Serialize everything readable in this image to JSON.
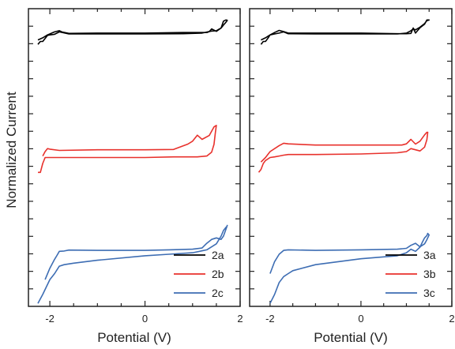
{
  "figure": {
    "ylabel": "Normalized Current"
  },
  "colors": {
    "a": "#000000",
    "b": "#e8312c",
    "c": "#3d6db3",
    "axis": "#222222"
  },
  "chart_data": [
    {
      "type": "line",
      "title": "",
      "xlabel": "Potential (V)",
      "ylabel": "Normalized Current",
      "xlim": [
        -2.45,
        2.0
      ],
      "ylim": [
        0,
        1
      ],
      "xticks": [
        -2,
        0,
        2
      ],
      "xtick_labels": [
        "-2",
        "0",
        "2"
      ],
      "grid": false,
      "yticks_labeled": false,
      "legend": {
        "position": "bottom-right",
        "entries": [
          "2a",
          "2b",
          "2c"
        ]
      },
      "series": [
        {
          "name": "2a",
          "color": "#000000",
          "x": [
            -2.25,
            -2.2,
            -2.15,
            -2.1,
            -2.05,
            -2.0,
            -1.9,
            -1.8,
            -1.6,
            -1.0,
            0.0,
            0.8,
            1.2,
            1.4,
            1.5,
            1.6,
            1.65,
            1.7,
            1.72,
            1.73,
            1.7,
            1.65,
            1.6,
            1.5,
            1.4,
            1.35,
            1.3,
            1.1,
            0.8,
            0.0,
            -1.0,
            -1.6,
            -1.75,
            -1.8,
            -1.9,
            -2.05,
            -2.15,
            -2.25
          ],
          "y": [
            0.88,
            0.89,
            0.89,
            0.9,
            0.91,
            0.912,
            0.914,
            0.922,
            0.915,
            0.915,
            0.915,
            0.916,
            0.918,
            0.925,
            0.926,
            0.935,
            0.945,
            0.954,
            0.958,
            0.961,
            0.962,
            0.958,
            0.935,
            0.924,
            0.932,
            0.923,
            0.92,
            0.92,
            0.92,
            0.918,
            0.918,
            0.917,
            0.922,
            0.926,
            0.922,
            0.912,
            0.902,
            0.895
          ]
        },
        {
          "name": "2b",
          "color": "#e8312c",
          "x": [
            -2.25,
            -2.2,
            -2.15,
            -2.1,
            -2.0,
            -1.8,
            -1.5,
            -1.0,
            0.0,
            0.6,
            0.9,
            1.1,
            1.3,
            1.4,
            1.45,
            1.48,
            1.5,
            1.45,
            1.35,
            1.2,
            1.1,
            1.0,
            0.9,
            0.6,
            0.0,
            -1.0,
            -1.8,
            -2.0,
            -2.05,
            -2.1,
            -2.15
          ],
          "y": [
            0.45,
            0.45,
            0.48,
            0.5,
            0.5,
            0.5,
            0.5,
            0.5,
            0.5,
            0.502,
            0.502,
            0.502,
            0.505,
            0.518,
            0.544,
            0.585,
            0.608,
            0.603,
            0.574,
            0.561,
            0.575,
            0.555,
            0.545,
            0.527,
            0.526,
            0.526,
            0.524,
            0.528,
            0.53,
            0.52,
            0.505
          ]
        },
        {
          "name": "2c",
          "color": "#3d6db3",
          "x": [
            -2.25,
            -2.15,
            -2.0,
            -1.9,
            -1.8,
            -1.7,
            -1.5,
            -1.0,
            0.0,
            0.5,
            1.0,
            1.3,
            1.5,
            1.6,
            1.65,
            1.7,
            1.72,
            1.73,
            1.7,
            1.65,
            1.6,
            1.5,
            1.4,
            1.3,
            1.2,
            1.0,
            0.5,
            0.0,
            -1.0,
            -1.6,
            -1.7,
            -1.8,
            -1.85,
            -1.9,
            -2.0,
            -2.1
          ],
          "y": [
            0.01,
            0.04,
            0.09,
            0.11,
            0.135,
            0.14,
            0.145,
            0.155,
            0.17,
            0.175,
            0.18,
            0.19,
            0.21,
            0.236,
            0.255,
            0.265,
            0.268,
            0.272,
            0.258,
            0.236,
            0.225,
            0.23,
            0.225,
            0.212,
            0.196,
            0.192,
            0.19,
            0.188,
            0.188,
            0.189,
            0.186,
            0.185,
            0.171,
            0.158,
            0.128,
            0.09
          ]
        }
      ]
    },
    {
      "type": "line",
      "title": "",
      "xlabel": "Potential (V)",
      "ylabel": "",
      "xlim": [
        -2.45,
        2.0
      ],
      "ylim": [
        0,
        1
      ],
      "xticks": [
        -2,
        0,
        2
      ],
      "xtick_labels": [
        "-2",
        "0",
        "2"
      ],
      "grid": false,
      "yticks_labeled": false,
      "legend": {
        "position": "bottom-right",
        "entries": [
          "3a",
          "3b",
          "3c"
        ]
      },
      "series": [
        {
          "name": "3a",
          "color": "#000000",
          "x": [
            -2.2,
            -2.15,
            -2.1,
            -2.05,
            -2.0,
            -1.9,
            -1.8,
            -1.7,
            -1.6,
            -1.0,
            0.0,
            0.8,
            1.0,
            1.1,
            1.15,
            1.2,
            1.3,
            1.4,
            1.45,
            1.5,
            1.45,
            1.4,
            1.3,
            1.2,
            1.15,
            1.1,
            1.0,
            0.8,
            0.0,
            -1.0,
            -1.6,
            -1.7,
            -1.8,
            -1.9,
            -2.0,
            -2.1,
            -2.2
          ],
          "y": [
            0.88,
            0.89,
            0.89,
            0.9,
            0.912,
            0.915,
            0.918,
            0.922,
            0.916,
            0.915,
            0.915,
            0.915,
            0.918,
            0.926,
            0.932,
            0.929,
            0.938,
            0.95,
            0.96,
            0.962,
            0.962,
            0.948,
            0.936,
            0.918,
            0.935,
            0.917,
            0.916,
            0.916,
            0.918,
            0.918,
            0.918,
            0.923,
            0.927,
            0.92,
            0.912,
            0.902,
            0.895
          ]
        },
        {
          "name": "3b",
          "color": "#e8312c",
          "x": [
            -2.25,
            -2.2,
            -2.15,
            -2.1,
            -2.0,
            -1.9,
            -1.8,
            -1.7,
            -1.6,
            -1.0,
            0.0,
            0.8,
            1.0,
            1.1,
            1.2,
            1.3,
            1.4,
            1.45,
            1.47,
            1.45,
            1.4,
            1.3,
            1.2,
            1.1,
            1.0,
            0.9,
            0.0,
            -1.0,
            -1.6,
            -1.7,
            -1.8,
            -2.0,
            -2.1,
            -2.2
          ],
          "y": [
            0.45,
            0.46,
            0.48,
            0.49,
            0.5,
            0.502,
            0.505,
            0.508,
            0.51,
            0.51,
            0.512,
            0.516,
            0.52,
            0.53,
            0.526,
            0.522,
            0.535,
            0.56,
            0.585,
            0.585,
            0.576,
            0.555,
            0.545,
            0.561,
            0.546,
            0.542,
            0.542,
            0.542,
            0.546,
            0.548,
            0.54,
            0.52,
            0.5,
            0.485
          ]
        },
        {
          "name": "3c",
          "color": "#3d6db3",
          "x": [
            -2.0,
            -1.9,
            -1.8,
            -1.7,
            -1.6,
            -1.5,
            -1.0,
            0.0,
            0.8,
            1.0,
            1.1,
            1.2,
            1.3,
            1.35,
            1.4,
            1.45,
            1.47,
            1.5,
            1.45,
            1.4,
            1.3,
            1.2,
            1.1,
            1.0,
            0.8,
            0.0,
            -1.0,
            -1.6,
            -1.7,
            -1.8,
            -1.9,
            -2.0
          ],
          "y": [
            0.01,
            0.04,
            0.08,
            0.1,
            0.11,
            0.12,
            0.14,
            0.16,
            0.17,
            0.18,
            0.192,
            0.185,
            0.199,
            0.215,
            0.23,
            0.238,
            0.245,
            0.24,
            0.224,
            0.21,
            0.2,
            0.212,
            0.205,
            0.195,
            0.192,
            0.19,
            0.188,
            0.19,
            0.188,
            0.175,
            0.15,
            0.11
          ]
        }
      ]
    }
  ]
}
